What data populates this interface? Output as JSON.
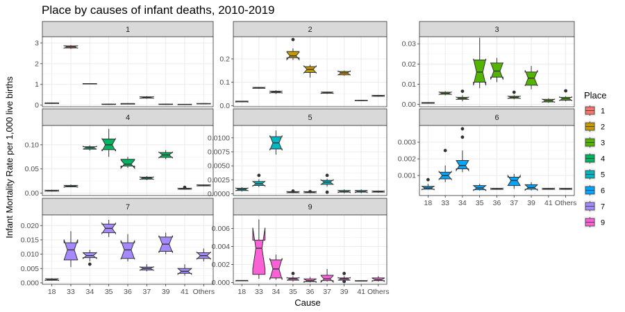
{
  "chart_data": {
    "type": "boxplot",
    "title": "Place by causes of infant deaths, 2010-2019",
    "xlabel": "Cause",
    "ylabel": "Infant Mortality Rate per 1,000 live births",
    "categories": [
      "18",
      "33",
      "34",
      "35",
      "36",
      "37",
      "39",
      "41",
      "Others"
    ],
    "grid": true,
    "facet_scales": "free",
    "legend": {
      "title": "Place",
      "placement": "right",
      "entries": [
        {
          "label": "1",
          "color": "#F8766D"
        },
        {
          "label": "2",
          "color": "#C49A00"
        },
        {
          "label": "3",
          "color": "#53B400"
        },
        {
          "label": "4",
          "color": "#00B462"
        },
        {
          "label": "5",
          "color": "#00B6C2"
        },
        {
          "label": "6",
          "color": "#00A5FF"
        },
        {
          "label": "7",
          "color": "#A58AFF"
        },
        {
          "label": "9",
          "color": "#FB61D7"
        }
      ]
    },
    "panels": [
      {
        "label": "1",
        "color": "#F8766D",
        "ylim": [
          -0.08,
          3.3
        ],
        "yticks": [
          0,
          1,
          2,
          3
        ],
        "ytick_labels": [
          "0",
          "1",
          "2",
          "3"
        ],
        "boxes": [
          {
            "cause": "18",
            "min": 0.06,
            "q1": 0.08,
            "median": 0.09,
            "q3": 0.11,
            "max": 0.12
          },
          {
            "cause": "33",
            "min": 2.71,
            "q1": 2.76,
            "median": 2.81,
            "q3": 2.86,
            "max": 2.9
          },
          {
            "cause": "34",
            "min": 1.01,
            "q1": 1.02,
            "median": 1.03,
            "q3": 1.04,
            "max": 1.05
          },
          {
            "cause": "35",
            "min": 0.02,
            "q1": 0.03,
            "median": 0.04,
            "q3": 0.05,
            "max": 0.06
          },
          {
            "cause": "36",
            "min": 0.04,
            "q1": 0.05,
            "median": 0.06,
            "q3": 0.08,
            "max": 0.1
          },
          {
            "cause": "37",
            "min": 0.31,
            "q1": 0.34,
            "median": 0.37,
            "q3": 0.4,
            "max": 0.43
          },
          {
            "cause": "39",
            "min": 0.02,
            "q1": 0.03,
            "median": 0.04,
            "q3": 0.05,
            "max": 0.06
          },
          {
            "cause": "41",
            "min": 0.01,
            "q1": 0.02,
            "median": 0.03,
            "q3": 0.04,
            "max": 0.05
          },
          {
            "cause": "Others",
            "min": 0.05,
            "q1": 0.06,
            "median": 0.07,
            "q3": 0.08,
            "max": 0.09
          }
        ],
        "outliers": []
      },
      {
        "label": "2",
        "color": "#C49A00",
        "ylim": [
          -0.005,
          0.295
        ],
        "yticks": [
          0,
          0.1,
          0.2
        ],
        "ytick_labels": [
          "0.0",
          "0.1",
          "0.2"
        ],
        "boxes": [
          {
            "cause": "18",
            "min": 0.015,
            "q1": 0.016,
            "median": 0.017,
            "q3": 0.019,
            "max": 0.02
          },
          {
            "cause": "33",
            "min": 0.072,
            "q1": 0.074,
            "median": 0.076,
            "q3": 0.078,
            "max": 0.08
          },
          {
            "cause": "34",
            "min": 0.05,
            "q1": 0.055,
            "median": 0.058,
            "q3": 0.062,
            "max": 0.066
          },
          {
            "cause": "35",
            "min": 0.195,
            "q1": 0.205,
            "median": 0.213,
            "q3": 0.232,
            "max": 0.245
          },
          {
            "cause": "36",
            "min": 0.12,
            "q1": 0.142,
            "median": 0.155,
            "q3": 0.167,
            "max": 0.175
          },
          {
            "cause": "37",
            "min": 0.05,
            "q1": 0.053,
            "median": 0.055,
            "q3": 0.058,
            "max": 0.06
          },
          {
            "cause": "39",
            "min": 0.128,
            "q1": 0.132,
            "median": 0.14,
            "q3": 0.146,
            "max": 0.15
          },
          {
            "cause": "41",
            "min": 0.02,
            "q1": 0.021,
            "median": 0.022,
            "q3": 0.023,
            "max": 0.024
          },
          {
            "cause": "Others",
            "min": 0.038,
            "q1": 0.04,
            "median": 0.042,
            "q3": 0.044,
            "max": 0.046
          }
        ],
        "outliers": [
          {
            "cause": "35",
            "value": 0.283
          }
        ]
      },
      {
        "label": "3",
        "color": "#53B400",
        "ylim": [
          -0.0012,
          0.0335
        ],
        "yticks": [
          0,
          0.01,
          0.02,
          0.03
        ],
        "ytick_labels": [
          "0.00",
          "0.01",
          "0.02",
          "0.03"
        ],
        "boxes": [
          {
            "cause": "18",
            "min": 0.0003,
            "q1": 0.0005,
            "median": 0.0007,
            "q3": 0.0009,
            "max": 0.0011
          },
          {
            "cause": "33",
            "min": 0.0045,
            "q1": 0.005,
            "median": 0.0055,
            "q3": 0.006,
            "max": 0.0065
          },
          {
            "cause": "34",
            "min": 0.0015,
            "q1": 0.0025,
            "median": 0.003,
            "q3": 0.0035,
            "max": 0.0045
          },
          {
            "cause": "35",
            "min": 0.008,
            "q1": 0.011,
            "median": 0.016,
            "q3": 0.022,
            "max": 0.033
          },
          {
            "cause": "36",
            "min": 0.011,
            "q1": 0.0135,
            "median": 0.0165,
            "q3": 0.0205,
            "max": 0.023
          },
          {
            "cause": "37",
            "min": 0.0025,
            "q1": 0.003,
            "median": 0.0035,
            "q3": 0.004,
            "max": 0.0045
          },
          {
            "cause": "39",
            "min": 0.0075,
            "q1": 0.0095,
            "median": 0.013,
            "q3": 0.016,
            "max": 0.019
          },
          {
            "cause": "41",
            "min": 0.0008,
            "q1": 0.0012,
            "median": 0.0018,
            "q3": 0.0025,
            "max": 0.003
          },
          {
            "cause": "Others",
            "min": 0.0015,
            "q1": 0.002,
            "median": 0.0028,
            "q3": 0.0035,
            "max": 0.004
          }
        ],
        "outliers": [
          {
            "cause": "34",
            "value": 0.0065
          },
          {
            "cause": "37",
            "value": 0.006
          },
          {
            "cause": "Others",
            "value": 0.0067
          }
        ]
      },
      {
        "label": "4",
        "color": "#00B462",
        "ylim": [
          -0.005,
          0.14
        ],
        "yticks": [
          0,
          0.05,
          0.1
        ],
        "ytick_labels": [
          "0.00",
          "0.05",
          "0.10"
        ],
        "boxes": [
          {
            "cause": "18",
            "min": 0.003,
            "q1": 0.004,
            "median": 0.005,
            "q3": 0.006,
            "max": 0.007
          },
          {
            "cause": "33",
            "min": 0.012,
            "q1": 0.013,
            "median": 0.014,
            "q3": 0.016,
            "max": 0.018
          },
          {
            "cause": "34",
            "min": 0.088,
            "q1": 0.091,
            "median": 0.094,
            "q3": 0.096,
            "max": 0.099
          },
          {
            "cause": "35",
            "min": 0.075,
            "q1": 0.09,
            "median": 0.1,
            "q3": 0.112,
            "max": 0.133
          },
          {
            "cause": "36",
            "min": 0.052,
            "q1": 0.056,
            "median": 0.06,
            "q3": 0.07,
            "max": 0.075
          },
          {
            "cause": "37",
            "min": 0.027,
            "q1": 0.029,
            "median": 0.031,
            "q3": 0.033,
            "max": 0.035
          },
          {
            "cause": "39",
            "min": 0.07,
            "q1": 0.074,
            "median": 0.079,
            "q3": 0.084,
            "max": 0.089
          },
          {
            "cause": "41",
            "min": 0.007,
            "q1": 0.008,
            "median": 0.009,
            "q3": 0.01,
            "max": 0.011
          },
          {
            "cause": "Others",
            "min": 0.014,
            "q1": 0.015,
            "median": 0.016,
            "q3": 0.017,
            "max": 0.018
          }
        ],
        "outliers": [
          {
            "cause": "41",
            "value": 0.012
          }
        ]
      },
      {
        "label": "5",
        "color": "#00B6C2",
        "ylim": [
          -0.0003,
          0.0122
        ],
        "yticks": [
          0,
          0.0025,
          0.005,
          0.0075,
          0.01
        ],
        "ytick_labels": [
          "0.0000",
          "0.0025",
          "0.0050",
          "0.0075",
          "0.0100"
        ],
        "boxes": [
          {
            "cause": "18",
            "min": 0.0004,
            "q1": 0.0006,
            "median": 0.0008,
            "q3": 0.001,
            "max": 0.0012
          },
          {
            "cause": "33",
            "min": 0.0012,
            "q1": 0.0015,
            "median": 0.0018,
            "q3": 0.0022,
            "max": 0.0026
          },
          {
            "cause": "34",
            "min": 0.007,
            "q1": 0.008,
            "median": 0.0091,
            "q3": 0.0102,
            "max": 0.0113
          },
          {
            "cause": "35",
            "min": 0.0001,
            "q1": 0.0002,
            "median": 0.0003,
            "q3": 0.0004,
            "max": 0.0005
          },
          {
            "cause": "36",
            "min": 0.0001,
            "q1": 0.0002,
            "median": 0.0003,
            "q3": 0.0004,
            "max": 0.0005
          },
          {
            "cause": "37",
            "min": 0.0013,
            "q1": 0.0017,
            "median": 0.0021,
            "q3": 0.0024,
            "max": 0.0027
          },
          {
            "cause": "39",
            "min": 0.0001,
            "q1": 0.0003,
            "median": 0.0004,
            "q3": 0.0006,
            "max": 0.0008
          },
          {
            "cause": "41",
            "min": 0.0001,
            "q1": 0.0003,
            "median": 0.0004,
            "q3": 0.0006,
            "max": 0.0008
          },
          {
            "cause": "Others",
            "min": 0.0002,
            "q1": 0.0003,
            "median": 0.0004,
            "q3": 0.0005,
            "max": 0.0006
          }
        ],
        "outliers": [
          {
            "cause": "33",
            "value": 0.0033
          },
          {
            "cause": "37",
            "value": 0.0033
          },
          {
            "cause": "37",
            "value": 0.0003
          },
          {
            "cause": "35",
            "value": 0.0005
          },
          {
            "cause": "36",
            "value": 0.0004
          }
        ]
      },
      {
        "label": "6",
        "color": "#00A5FF",
        "ylim": [
          -0.0002,
          0.004
        ],
        "yticks": [
          0.001,
          0.002,
          0.003
        ],
        "ytick_labels": [
          "0.001",
          "0.002",
          "0.003"
        ],
        "boxes": [
          {
            "cause": "18",
            "min": 0.00015,
            "q1": 0.00018,
            "median": 0.00025,
            "q3": 0.00035,
            "max": 0.0005
          },
          {
            "cause": "33",
            "min": 0.0006,
            "q1": 0.0008,
            "median": 0.001,
            "q3": 0.0012,
            "max": 0.0016
          },
          {
            "cause": "34",
            "min": 0.0012,
            "q1": 0.0014,
            "median": 0.0016,
            "q3": 0.0019,
            "max": 0.0025
          },
          {
            "cause": "35",
            "min": 0.0001,
            "q1": 0.00015,
            "median": 0.00025,
            "q3": 0.0004,
            "max": 0.0005
          },
          {
            "cause": "36",
            "min": 0.00015,
            "q1": 0.00017,
            "median": 0.0002,
            "q3": 0.00023,
            "max": 0.00025
          },
          {
            "cause": "37",
            "min": 0.0002,
            "q1": 0.0004,
            "median": 0.0007,
            "q3": 0.0009,
            "max": 0.0011
          },
          {
            "cause": "39",
            "min": 0.0001,
            "q1": 0.00018,
            "median": 0.00028,
            "q3": 0.00045,
            "max": 0.0006
          },
          {
            "cause": "41",
            "min": 0.00015,
            "q1": 0.00017,
            "median": 0.0002,
            "q3": 0.00023,
            "max": 0.00025
          },
          {
            "cause": "Others",
            "min": 0.00015,
            "q1": 0.00017,
            "median": 0.0002,
            "q3": 0.00023,
            "max": 0.00025
          }
        ],
        "outliers": [
          {
            "cause": "18",
            "value": 0.00075
          },
          {
            "cause": "33",
            "value": 0.0025
          },
          {
            "cause": "34",
            "value": 0.0033
          },
          {
            "cause": "34",
            "value": 0.0038
          }
        ]
      },
      {
        "label": "7",
        "color": "#A58AFF",
        "ylim": [
          -0.0005,
          0.0237
        ],
        "yticks": [
          0,
          0.005,
          0.01,
          0.015,
          0.02
        ],
        "ytick_labels": [
          "0.000",
          "0.005",
          "0.010",
          "0.015",
          "0.020"
        ],
        "boxes": [
          {
            "cause": "18",
            "min": 0.0008,
            "q1": 0.0009,
            "median": 0.0011,
            "q3": 0.0014,
            "max": 0.0016
          },
          {
            "cause": "33",
            "min": 0.0055,
            "q1": 0.008,
            "median": 0.0115,
            "q3": 0.014,
            "max": 0.018
          },
          {
            "cause": "34",
            "min": 0.0075,
            "q1": 0.0088,
            "median": 0.0095,
            "q3": 0.0105,
            "max": 0.0115
          },
          {
            "cause": "35",
            "min": 0.016,
            "q1": 0.0175,
            "median": 0.019,
            "q3": 0.0205,
            "max": 0.022
          },
          {
            "cause": "36",
            "min": 0.0075,
            "q1": 0.0085,
            "median": 0.0115,
            "q3": 0.014,
            "max": 0.017
          },
          {
            "cause": "37",
            "min": 0.004,
            "q1": 0.0045,
            "median": 0.005,
            "q3": 0.0055,
            "max": 0.0065
          },
          {
            "cause": "39",
            "min": 0.01,
            "q1": 0.011,
            "median": 0.0135,
            "q3": 0.016,
            "max": 0.0175
          },
          {
            "cause": "41",
            "min": 0.0025,
            "q1": 0.0033,
            "median": 0.004,
            "q3": 0.005,
            "max": 0.0065
          },
          {
            "cause": "Others",
            "min": 0.0075,
            "q1": 0.0085,
            "median": 0.0095,
            "q3": 0.0105,
            "max": 0.012
          }
        ],
        "outliers": [
          {
            "cause": "34",
            "value": 0.0065
          }
        ]
      },
      {
        "label": "9",
        "color": "#FB61D7",
        "ylim": [
          -0.0002,
          0.0075
        ],
        "yticks": [
          0,
          0.002,
          0.004,
          0.006
        ],
        "ytick_labels": [
          "0.000",
          "0.002",
          "0.004",
          "0.006"
        ],
        "boxes": [
          {
            "cause": "18",
            "min": 0.00015,
            "q1": 0.00018,
            "median": 0.0002,
            "q3": 0.00023,
            "max": 0.00026
          },
          {
            "cause": "33",
            "min": 0.0004,
            "q1": 0.0009,
            "median": 0.0038,
            "q3": 0.0047,
            "max": 0.007
          },
          {
            "cause": "34",
            "min": 0.0003,
            "q1": 0.0005,
            "median": 0.0015,
            "q3": 0.0025,
            "max": 0.0031
          },
          {
            "cause": "35",
            "min": 0.0001,
            "q1": 0.00025,
            "median": 0.0004,
            "q3": 0.0005,
            "max": 0.0007
          },
          {
            "cause": "36",
            "min": 0.0,
            "q1": 0.0001,
            "median": 0.0002,
            "q3": 0.0004,
            "max": 0.0006
          },
          {
            "cause": "37",
            "min": 0.0001,
            "q1": 0.0002,
            "median": 0.0004,
            "q3": 0.0008,
            "max": 0.0015
          },
          {
            "cause": "39",
            "min": 0.0001,
            "q1": 0.00025,
            "median": 0.0004,
            "q3": 0.0005,
            "max": 0.0007
          },
          {
            "cause": "41",
            "min": 0.00012,
            "q1": 0.00015,
            "median": 0.00018,
            "q3": 0.0002,
            "max": 0.00022
          },
          {
            "cause": "Others",
            "min": 0.0001,
            "q1": 0.0002,
            "median": 0.0003,
            "q3": 0.0005,
            "max": 0.0007
          }
        ],
        "outliers": [
          {
            "cause": "35",
            "value": 0.001
          },
          {
            "cause": "39",
            "value": 0.001
          },
          {
            "cause": "39",
            "value": 0.0001
          }
        ]
      }
    ]
  }
}
